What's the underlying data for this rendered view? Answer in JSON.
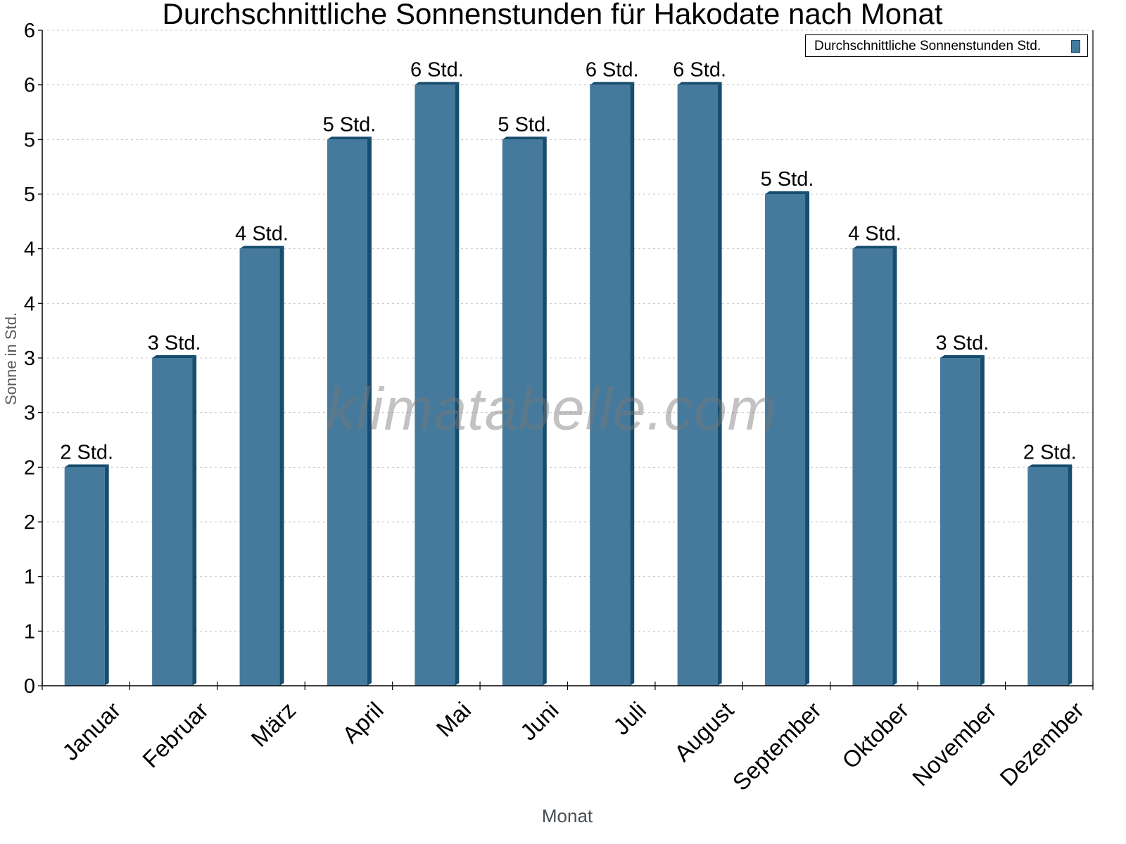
{
  "chart_data": {
    "type": "bar",
    "title": "Durchschnittliche Sonnenstunden für Hakodate nach Monat",
    "xlabel": "Monat",
    "ylabel": "Sonne in Std.",
    "ylim": [
      0,
      6
    ],
    "grid": true,
    "legend_position": "top-right",
    "categories": [
      "Januar",
      "Februar",
      "März",
      "April",
      "Mai",
      "Juni",
      "Juli",
      "August",
      "September",
      "Oktober",
      "November",
      "Dezember"
    ],
    "series": [
      {
        "name": "Durchschnittliche Sonnenstunden Std.",
        "color": "#467a9c",
        "values": [
          2.0,
          3.0,
          4.0,
          5.0,
          5.5,
          5.0,
          5.5,
          5.5,
          4.5,
          4.0,
          3.0,
          2.0
        ],
        "data_labels": [
          "2 Std.",
          "3 Std.",
          "4 Std.",
          "5 Std.",
          "6 Std.",
          "5 Std.",
          "6 Std.",
          "6 Std.",
          "5 Std.",
          "4 Std.",
          "3 Std.",
          "2 Std."
        ]
      }
    ],
    "y_ticks": [
      0,
      0.5,
      1,
      1.5,
      2,
      2.5,
      3,
      3.5,
      4,
      4.5,
      5,
      5.5,
      6
    ],
    "y_tick_labels": [
      "0",
      "1",
      "1",
      "2",
      "2",
      "3",
      "3",
      "4",
      "4",
      "5",
      "5",
      "6",
      "6"
    ]
  },
  "legend": {
    "label": "Durchschnittliche Sonnenstunden Std."
  },
  "watermark": "klimatabelle.com",
  "colors": {
    "bar_front": "#467a9c",
    "bar_side": "#174d6e",
    "grid": "#c8c8c8",
    "axis": "#000000"
  }
}
